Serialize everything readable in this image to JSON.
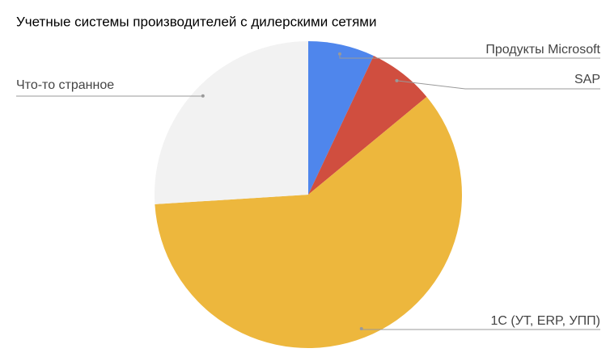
{
  "chart_data": {
    "type": "pie",
    "title": "Учетные системы производителей с дилерскими сетями",
    "categories": [
      "Продукты Microsoft",
      "SAP",
      "1С (УТ, ERP, УПП)",
      "Что-то странное"
    ],
    "values": [
      7,
      7,
      60,
      26
    ],
    "colors": [
      "#4f86ec",
      "#d04e3f",
      "#edb73d",
      "#f2f2f2"
    ]
  }
}
